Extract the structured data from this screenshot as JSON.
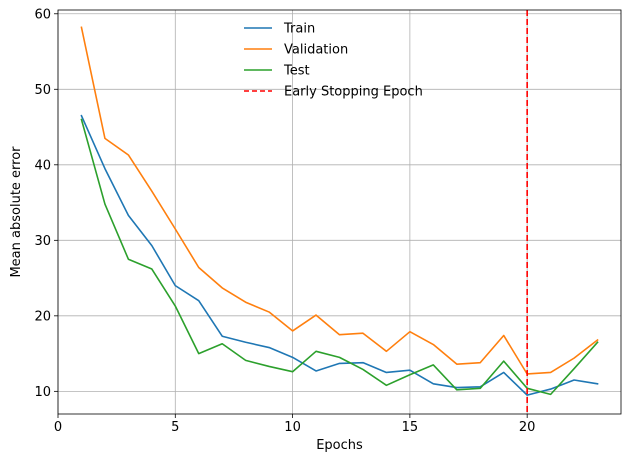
{
  "chart_data": {
    "type": "line",
    "title": "",
    "xlabel": "Epochs",
    "ylabel": "Mean absolute error",
    "xlim": [
      0.0,
      24.0
    ],
    "ylim": [
      7.0,
      60.5
    ],
    "xticks": [
      0,
      5,
      10,
      15,
      20
    ],
    "yticks": [
      10,
      20,
      30,
      40,
      50,
      60
    ],
    "grid": true,
    "legend_position": "top-center",
    "x": [
      1,
      2,
      3,
      4,
      5,
      6,
      7,
      8,
      9,
      10,
      11,
      12,
      13,
      14,
      15,
      16,
      17,
      18,
      19,
      20,
      21,
      22,
      23
    ],
    "series": [
      {
        "name": "Train",
        "color": "#1f77b4",
        "values": [
          46.5,
          39.5,
          33.3,
          29.3,
          24.0,
          22.0,
          17.3,
          16.5,
          15.8,
          14.5,
          12.7,
          13.7,
          13.8,
          12.5,
          12.8,
          11.0,
          10.5,
          10.6,
          12.5,
          9.5,
          10.3,
          11.5,
          11.0
        ]
      },
      {
        "name": "Validation",
        "color": "#ff7f0e",
        "values": [
          58.2,
          43.5,
          41.3,
          36.5,
          31.5,
          26.4,
          23.7,
          21.8,
          20.5,
          18.0,
          20.1,
          17.5,
          17.7,
          15.3,
          17.9,
          16.2,
          13.6,
          13.8,
          17.4,
          12.3,
          12.5,
          14.4,
          16.8
        ]
      },
      {
        "name": "Test",
        "color": "#2ca02c",
        "values": [
          46.0,
          34.8,
          27.5,
          26.2,
          21.3,
          15.0,
          16.3,
          14.1,
          13.3,
          12.6,
          15.3,
          14.5,
          12.9,
          10.8,
          12.2,
          13.5,
          10.2,
          10.4,
          14.0,
          10.4,
          9.6,
          13.0,
          16.5
        ]
      }
    ],
    "vlines": [
      {
        "name": "Early Stopping Epoch",
        "x": 20,
        "color": "#ff0000",
        "style": "dashed"
      }
    ]
  }
}
